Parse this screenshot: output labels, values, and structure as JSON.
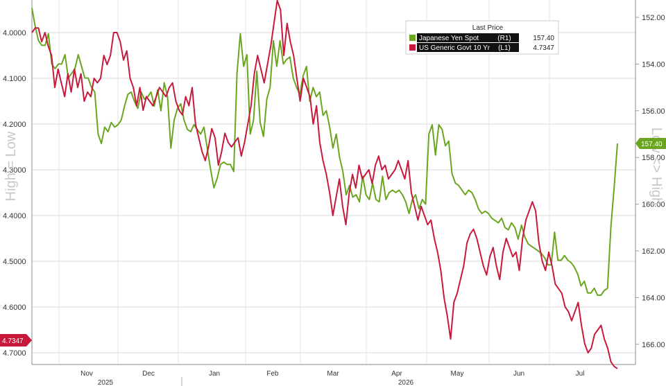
{
  "chart_data": {
    "type": "line",
    "legend": {
      "title": "Last Price",
      "placement": "top-right",
      "entries": [
        {
          "name": "Japanese Yen Spot",
          "tag": "(R1)",
          "last": "157.40",
          "color": "#6aa51f"
        },
        {
          "name": "US Generic Govt 10 Yr",
          "tag": "(L1)",
          "last": "4.7347",
          "color": "#c8183c"
        }
      ]
    },
    "y_left": {
      "title": "High = Low",
      "ticks": [
        "4.0000",
        "4.1000",
        "4.2000",
        "4.3000",
        "4.4000",
        "4.5000",
        "4.6000",
        "4.7000"
      ],
      "range": [
        4.7347,
        3.99
      ],
      "last_label": "4.7347"
    },
    "y_right": {
      "title": "Low <> High",
      "ticks": [
        "152.00",
        "154.00",
        "156.00",
        "158.00",
        "160.00",
        "162.00",
        "164.00",
        "166.00"
      ],
      "range": [
        166.2,
        151.6
      ],
      "last_label": "157.40"
    },
    "x_axis": {
      "months": [
        "Nov",
        "Dec",
        "Jan",
        "Feb",
        "Mar",
        "Apr",
        "May",
        "Jun",
        "Jul"
      ],
      "years": [
        "2025",
        "2026"
      ]
    },
    "grid": true,
    "series": [
      {
        "name": "Japanese Yen Spot",
        "axis": "right",
        "color": "#6aa51f",
        "values": [
          151.6,
          152.4,
          153.0,
          153.2,
          153.2,
          152.7,
          154.0,
          154.2,
          154.0,
          154.0,
          153.6,
          154.6,
          154.4,
          154.2,
          153.6,
          154.1,
          154.6,
          154.6,
          155.0,
          155.2,
          157.0,
          157.4,
          156.7,
          156.9,
          156.5,
          156.7,
          156.6,
          156.4,
          155.8,
          155.3,
          155.2,
          155.6,
          155.9,
          155.2,
          155.5,
          155.4,
          155.2,
          155.8,
          155.1,
          156.0,
          154.8,
          155.4,
          157.6,
          156.4,
          155.9,
          155.7,
          156.4,
          156.8,
          156.9,
          156.6,
          156.8,
          157.0,
          156.7,
          157.6,
          158.5,
          159.3,
          158.9,
          158.3,
          158.2,
          158.3,
          158.3,
          158.6,
          154.4,
          152.7,
          154.1,
          153.6,
          157.0,
          156.4,
          154.3,
          156.5,
          157.1,
          155.5,
          155.0,
          153.0,
          154.1,
          153.0,
          154.0,
          153.8,
          153.7,
          154.6,
          155.0,
          155.3,
          154.5,
          154.1,
          155.6,
          155.0,
          155.4,
          155.2,
          156.2,
          156.0,
          156.7,
          157.6,
          157.0,
          158.0,
          158.6,
          159.6,
          159.2,
          159.7,
          159.6,
          159.9,
          158.8,
          159.6,
          159.8,
          159.1,
          159.8,
          159.9,
          158.8,
          159.8,
          159.5,
          159.4,
          159.5,
          159.4,
          159.6,
          159.9,
          160.4,
          159.8,
          159.6,
          160.2,
          159.8,
          160.0,
          157.0,
          156.6,
          157.9,
          156.6,
          156.8,
          157.5,
          157.3,
          158.7,
          159.1,
          159.2,
          159.4,
          159.6,
          159.4,
          159.5,
          159.8,
          160.2,
          160.4,
          160.3,
          160.4,
          160.6,
          160.7,
          160.8,
          160.6,
          161.0,
          161.1,
          160.8,
          161.0,
          161.5,
          160.9,
          161.4,
          161.7,
          161.8,
          161.9,
          162.0,
          162.1,
          162.3,
          162.6,
          162.6,
          161.2,
          162.4,
          162.4,
          162.2,
          162.4,
          162.5,
          162.7,
          163.0,
          163.5,
          163.3,
          163.8,
          163.8,
          163.6,
          163.9,
          163.9,
          163.7,
          163.6,
          161.0,
          159.3,
          157.4
        ]
      },
      {
        "name": "US Generic Govt 10 Yr",
        "axis": "left",
        "color": "#c8183c",
        "values": [
          4.0,
          3.99,
          3.99,
          4.02,
          4.0,
          4.03,
          4.05,
          4.12,
          4.08,
          4.11,
          4.14,
          4.09,
          4.13,
          4.08,
          4.12,
          4.09,
          4.15,
          4.13,
          4.14,
          4.1,
          4.11,
          4.1,
          4.05,
          4.07,
          4.05,
          4.0,
          4.0,
          4.02,
          4.06,
          4.04,
          4.1,
          4.12,
          4.16,
          4.12,
          4.17,
          4.14,
          4.15,
          4.16,
          4.14,
          4.12,
          4.13,
          4.14,
          4.12,
          4.11,
          4.15,
          4.17,
          4.18,
          4.14,
          4.16,
          4.12,
          4.2,
          4.23,
          4.26,
          4.28,
          4.25,
          4.21,
          4.23,
          4.29,
          4.26,
          4.22,
          4.24,
          4.25,
          4.24,
          4.23,
          4.27,
          4.24,
          4.2,
          4.16,
          4.09,
          4.05,
          4.08,
          4.11,
          4.07,
          4.03,
          3.98,
          3.93,
          3.95,
          4.05,
          3.98,
          4.02,
          4.05,
          4.1,
          4.15,
          4.1,
          4.12,
          4.14,
          4.2,
          4.16,
          4.24,
          4.28,
          4.31,
          4.35,
          4.4,
          4.36,
          4.32,
          4.38,
          4.42,
          4.35,
          4.31,
          4.34,
          4.29,
          4.32,
          4.31,
          4.3,
          4.33,
          4.29,
          4.27,
          4.3,
          4.29,
          4.32,
          4.31,
          4.3,
          4.28,
          4.3,
          4.32,
          4.28,
          4.35,
          4.38,
          4.41,
          4.38,
          4.4,
          4.42,
          4.41,
          4.45,
          4.48,
          4.52,
          4.58,
          4.62,
          4.67,
          4.59,
          4.57,
          4.54,
          4.51,
          4.46,
          4.44,
          4.43,
          4.45,
          4.48,
          4.51,
          4.53,
          4.49,
          4.47,
          4.51,
          4.54,
          4.48,
          4.45,
          4.47,
          4.49,
          4.48,
          4.52,
          4.45,
          4.41,
          4.39,
          4.37,
          4.39,
          4.46,
          4.5,
          4.52,
          4.48,
          4.51,
          4.55,
          4.56,
          4.57,
          4.6,
          4.61,
          4.63,
          4.61,
          4.59,
          4.64,
          4.68,
          4.7,
          4.69,
          4.66,
          4.65,
          4.64,
          4.67,
          4.69,
          4.72,
          4.73,
          4.7347
        ]
      }
    ]
  }
}
